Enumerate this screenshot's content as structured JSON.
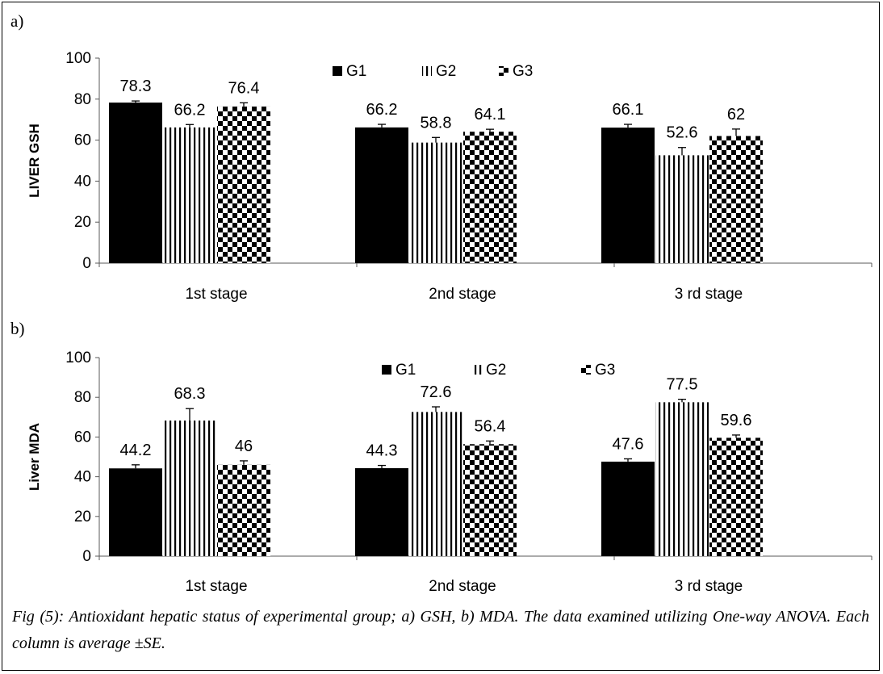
{
  "caption": "Fig (5): Antioxidant hepatic status of experimental group; a) GSH, b) MDA. The data examined utilizing One-way ANOVA. Each column is average ±SE.",
  "colors": {
    "G1": "#000000",
    "G2": "#000000",
    "G3": "#000000",
    "background": "#ffffff"
  },
  "chart_data": [
    {
      "type": "bar",
      "panel_label": "a)",
      "title": "",
      "xlabel": "",
      "ylabel": "LIVER GSH",
      "categories": [
        "1st stage",
        "2nd stage",
        "3 rd stage"
      ],
      "ylim": [
        0,
        100
      ],
      "yticks": [
        0,
        20,
        40,
        60,
        80,
        100
      ],
      "grid": false,
      "legend_position": "top-center",
      "series": [
        {
          "name": "G1",
          "pattern": "solid",
          "values": [
            78.3,
            66.2,
            66.1
          ],
          "labels": [
            "78.3",
            "66.2",
            "66.1"
          ],
          "errors": [
            0.8,
            1.5,
            1.6
          ]
        },
        {
          "name": "G2",
          "pattern": "vertical-stripes",
          "values": [
            66.2,
            58.8,
            52.6
          ],
          "labels": [
            "66.2",
            "58.8",
            "52.6"
          ],
          "errors": [
            1.4,
            2.5,
            3.8
          ]
        },
        {
          "name": "G3",
          "pattern": "checkerboard",
          "values": [
            76.4,
            64.1,
            62
          ],
          "labels": [
            "76.4",
            "64.1",
            "62"
          ],
          "errors": [
            1.8,
            1.2,
            3.4
          ]
        }
      ]
    },
    {
      "type": "bar",
      "panel_label": "b)",
      "title": "",
      "xlabel": "",
      "ylabel": "Liver MDA",
      "categories": [
        "1st stage",
        "2nd stage",
        "3 rd stage"
      ],
      "ylim": [
        0,
        100
      ],
      "yticks": [
        0,
        20,
        40,
        60,
        80,
        100
      ],
      "grid": false,
      "legend_position": "top-center",
      "series": [
        {
          "name": "G1",
          "pattern": "solid",
          "values": [
            44.2,
            44.3,
            47.6
          ],
          "labels": [
            "44.2",
            "44.3",
            "47.6"
          ],
          "errors": [
            1.8,
            1.4,
            1.4
          ]
        },
        {
          "name": "G2",
          "pattern": "vertical-stripes",
          "values": [
            68.3,
            72.6,
            77.5
          ],
          "labels": [
            "68.3",
            "72.6",
            "77.5"
          ],
          "errors": [
            6,
            2.6,
            1.5
          ]
        },
        {
          "name": "G3",
          "pattern": "checkerboard",
          "values": [
            46,
            56.4,
            59.6
          ],
          "labels": [
            "46",
            "56.4",
            "59.6"
          ],
          "errors": [
            2,
            1.6,
            1.4
          ]
        }
      ]
    }
  ]
}
